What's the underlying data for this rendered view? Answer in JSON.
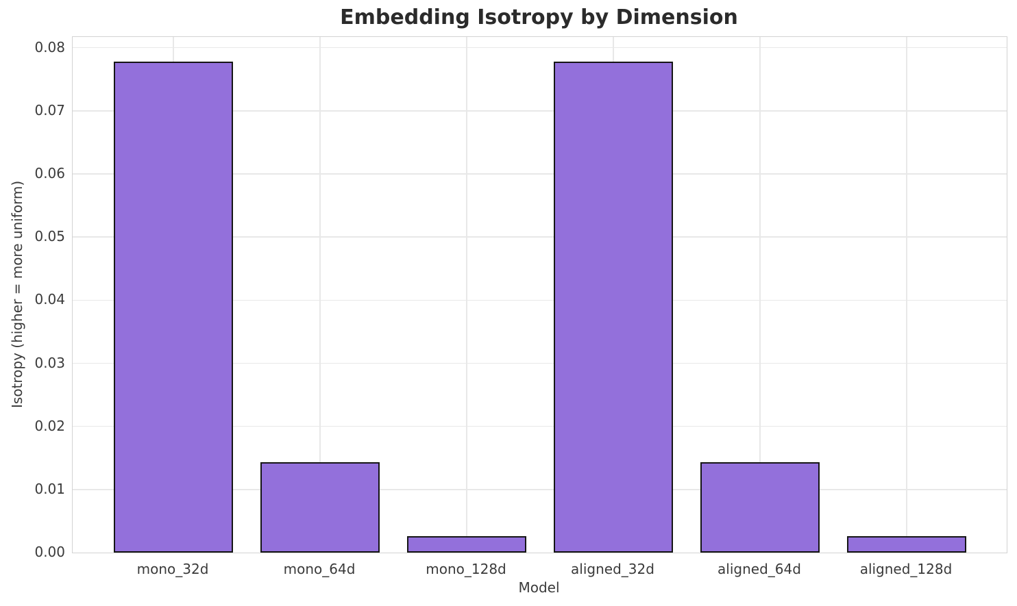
{
  "chart_data": {
    "type": "bar",
    "title": "Embedding Isotropy by Dimension",
    "xlabel": "Model",
    "ylabel": "Isotropy (higher = more uniform)",
    "categories": [
      "mono_32d",
      "mono_64d",
      "mono_128d",
      "aligned_32d",
      "aligned_64d",
      "aligned_128d"
    ],
    "values": [
      0.0778,
      0.0143,
      0.0026,
      0.0778,
      0.0143,
      0.0026
    ],
    "ylim": [
      0,
      0.0817
    ],
    "ytick_values": [
      0,
      0.01,
      0.02,
      0.03,
      0.04,
      0.05,
      0.06,
      0.07,
      0.08
    ],
    "ytick_labels": [
      "0.00",
      "0.01",
      "0.02",
      "0.03",
      "0.04",
      "0.05",
      "0.06",
      "0.07",
      "0.08"
    ],
    "grid": true,
    "legend": false,
    "bar_color": "#9370DB",
    "bar_edge_color": "#151515",
    "grid_color": "#e8e8e8",
    "spine_color": "#d2d2d2"
  }
}
